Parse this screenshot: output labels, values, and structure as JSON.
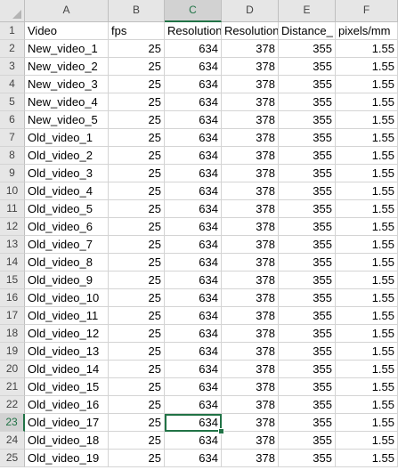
{
  "sheet": {
    "columns": [
      "A",
      "B",
      "C",
      "D",
      "E",
      "F"
    ],
    "selected_column": "C",
    "selected_row": 23,
    "headers": [
      "Video",
      "fps",
      "Resolution",
      "Resolution",
      "Distance_",
      "pixels/mm"
    ],
    "rows": [
      {
        "n": 2,
        "video": "New_video_1",
        "fps": "25",
        "c": "634",
        "d": "378",
        "e": "355",
        "f": "1.55"
      },
      {
        "n": 3,
        "video": "New_video_2",
        "fps": "25",
        "c": "634",
        "d": "378",
        "e": "355",
        "f": "1.55"
      },
      {
        "n": 4,
        "video": "New_video_3",
        "fps": "25",
        "c": "634",
        "d": "378",
        "e": "355",
        "f": "1.55"
      },
      {
        "n": 5,
        "video": "New_video_4",
        "fps": "25",
        "c": "634",
        "d": "378",
        "e": "355",
        "f": "1.55"
      },
      {
        "n": 6,
        "video": "New_video_5",
        "fps": "25",
        "c": "634",
        "d": "378",
        "e": "355",
        "f": "1.55"
      },
      {
        "n": 7,
        "video": "Old_video_1",
        "fps": "25",
        "c": "634",
        "d": "378",
        "e": "355",
        "f": "1.55"
      },
      {
        "n": 8,
        "video": "Old_video_2",
        "fps": "25",
        "c": "634",
        "d": "378",
        "e": "355",
        "f": "1.55"
      },
      {
        "n": 9,
        "video": "Old_video_3",
        "fps": "25",
        "c": "634",
        "d": "378",
        "e": "355",
        "f": "1.55"
      },
      {
        "n": 10,
        "video": "Old_video_4",
        "fps": "25",
        "c": "634",
        "d": "378",
        "e": "355",
        "f": "1.55"
      },
      {
        "n": 11,
        "video": "Old_video_5",
        "fps": "25",
        "c": "634",
        "d": "378",
        "e": "355",
        "f": "1.55"
      },
      {
        "n": 12,
        "video": "Old_video_6",
        "fps": "25",
        "c": "634",
        "d": "378",
        "e": "355",
        "f": "1.55"
      },
      {
        "n": 13,
        "video": "Old_video_7",
        "fps": "25",
        "c": "634",
        "d": "378",
        "e": "355",
        "f": "1.55"
      },
      {
        "n": 14,
        "video": "Old_video_8",
        "fps": "25",
        "c": "634",
        "d": "378",
        "e": "355",
        "f": "1.55"
      },
      {
        "n": 15,
        "video": "Old_video_9",
        "fps": "25",
        "c": "634",
        "d": "378",
        "e": "355",
        "f": "1.55"
      },
      {
        "n": 16,
        "video": "Old_video_10",
        "fps": "25",
        "c": "634",
        "d": "378",
        "e": "355",
        "f": "1.55"
      },
      {
        "n": 17,
        "video": "Old_video_11",
        "fps": "25",
        "c": "634",
        "d": "378",
        "e": "355",
        "f": "1.55"
      },
      {
        "n": 18,
        "video": "Old_video_12",
        "fps": "25",
        "c": "634",
        "d": "378",
        "e": "355",
        "f": "1.55"
      },
      {
        "n": 19,
        "video": "Old_video_13",
        "fps": "25",
        "c": "634",
        "d": "378",
        "e": "355",
        "f": "1.55"
      },
      {
        "n": 20,
        "video": "Old_video_14",
        "fps": "25",
        "c": "634",
        "d": "378",
        "e": "355",
        "f": "1.55"
      },
      {
        "n": 21,
        "video": "Old_video_15",
        "fps": "25",
        "c": "634",
        "d": "378",
        "e": "355",
        "f": "1.55"
      },
      {
        "n": 22,
        "video": "Old_video_16",
        "fps": "25",
        "c": "634",
        "d": "378",
        "e": "355",
        "f": "1.55"
      },
      {
        "n": 23,
        "video": "Old_video_17",
        "fps": "25",
        "c": "634",
        "d": "378",
        "e": "355",
        "f": "1.55"
      },
      {
        "n": 24,
        "video": "Old_video_18",
        "fps": "25",
        "c": "634",
        "d": "378",
        "e": "355",
        "f": "1.55"
      },
      {
        "n": 25,
        "video": "Old_video_19",
        "fps": "25",
        "c": "634",
        "d": "378",
        "e": "355",
        "f": "1.55"
      }
    ]
  }
}
